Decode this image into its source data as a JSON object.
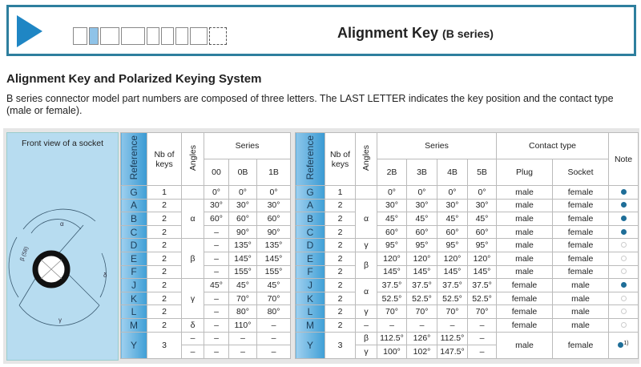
{
  "header": {
    "title": "Alignment Key",
    "subtitle": "(B series)",
    "accent": "#1f86c4"
  },
  "section": {
    "title": "Alignment Key and Polarized Keying System",
    "description": "B series connector model part numbers are composed of three letters. The LAST LETTER indicates the key position and the contact type (male or female)."
  },
  "diagram": {
    "title": "Front view of a socket",
    "labels": {
      "alpha": "α",
      "beta": "β (58)",
      "gamma": "γ",
      "delta": "δ"
    }
  },
  "left_table": {
    "headers": {
      "reference": "Reference",
      "keys": "Nb of keys",
      "angles": "Angles",
      "series": "Series",
      "cols": [
        "00",
        "0B",
        "1B"
      ]
    },
    "groups": [
      {
        "angle": "",
        "rows": [
          {
            "ref": "G",
            "keys": "1",
            "values": [
              "0°",
              "0°",
              "0°"
            ]
          }
        ]
      },
      {
        "angle": "α",
        "rows": [
          {
            "ref": "A",
            "keys": "2",
            "values": [
              "30°",
              "30°",
              "30°"
            ]
          },
          {
            "ref": "B",
            "keys": "2",
            "values": [
              "60°",
              "60°",
              "60°"
            ]
          },
          {
            "ref": "C",
            "keys": "2",
            "values": [
              "–",
              "90°",
              "90°"
            ]
          }
        ]
      },
      {
        "angle": "β",
        "rows": [
          {
            "ref": "D",
            "keys": "2",
            "values": [
              "–",
              "135°",
              "135°"
            ]
          },
          {
            "ref": "E",
            "keys": "2",
            "values": [
              "–",
              "145°",
              "145°"
            ]
          },
          {
            "ref": "F",
            "keys": "2",
            "values": [
              "–",
              "155°",
              "155°"
            ]
          }
        ]
      },
      {
        "angle": "γ",
        "rows": [
          {
            "ref": "J",
            "keys": "2",
            "values": [
              "45°",
              "45°",
              "45°"
            ]
          },
          {
            "ref": "K",
            "keys": "2",
            "values": [
              "–",
              "70°",
              "70°"
            ]
          },
          {
            "ref": "L",
            "keys": "2",
            "values": [
              "–",
              "80°",
              "80°"
            ]
          }
        ]
      },
      {
        "angle": "δ",
        "rows": [
          {
            "ref": "M",
            "keys": "2",
            "values": [
              "–",
              "110°",
              "–"
            ]
          }
        ]
      }
    ],
    "y_row": {
      "ref": "Y",
      "keys": "3",
      "sub": [
        {
          "angle": "–",
          "values": [
            "–",
            "–",
            "–"
          ]
        },
        {
          "angle": "–",
          "values": [
            "–",
            "–",
            "–"
          ]
        }
      ]
    }
  },
  "right_table": {
    "headers": {
      "reference": "Reference",
      "keys": "Nb of keys",
      "angles": "Angles",
      "series": "Series",
      "cols": [
        "2B",
        "3B",
        "4B",
        "5B"
      ],
      "contact": "Contact type",
      "plug": "Plug",
      "socket": "Socket",
      "note": "Note"
    },
    "groups": [
      {
        "angle": "",
        "rows": [
          {
            "ref": "G",
            "keys": "1",
            "values": [
              "0°",
              "0°",
              "0°",
              "0°"
            ],
            "plug": "male",
            "socket": "female",
            "note": true
          }
        ]
      },
      {
        "angle": "α",
        "rows": [
          {
            "ref": "A",
            "keys": "2",
            "values": [
              "30°",
              "30°",
              "30°",
              "30°"
            ],
            "plug": "male",
            "socket": "female",
            "note": true
          },
          {
            "ref": "B",
            "keys": "2",
            "values": [
              "45°",
              "45°",
              "45°",
              "45°"
            ],
            "plug": "male",
            "socket": "female",
            "note": true
          },
          {
            "ref": "C",
            "keys": "2",
            "values": [
              "60°",
              "60°",
              "60°",
              "60°"
            ],
            "plug": "male",
            "socket": "female",
            "note": true
          }
        ]
      },
      {
        "angle": "γ",
        "rows": [
          {
            "ref": "D",
            "keys": "2",
            "values": [
              "95°",
              "95°",
              "95°",
              "95°"
            ],
            "plug": "male",
            "socket": "female",
            "note": false
          }
        ]
      },
      {
        "angle": "β",
        "rows": [
          {
            "ref": "E",
            "keys": "2",
            "values": [
              "120°",
              "120°",
              "120°",
              "120°"
            ],
            "plug": "male",
            "socket": "female",
            "note": false
          },
          {
            "ref": "F",
            "keys": "2",
            "values": [
              "145°",
              "145°",
              "145°",
              "145°"
            ],
            "plug": "male",
            "socket": "female",
            "note": false
          }
        ]
      },
      {
        "angle": "α",
        "rows": [
          {
            "ref": "J",
            "keys": "2",
            "values": [
              "37.5°",
              "37.5°",
              "37.5°",
              "37.5°"
            ],
            "plug": "female",
            "socket": "male",
            "note": true
          },
          {
            "ref": "K",
            "keys": "2",
            "values": [
              "52.5°",
              "52.5°",
              "52.5°",
              "52.5°"
            ],
            "plug": "female",
            "socket": "male",
            "note": false
          }
        ]
      },
      {
        "angle": "γ",
        "rows": [
          {
            "ref": "L",
            "keys": "2",
            "values": [
              "70°",
              "70°",
              "70°",
              "70°"
            ],
            "plug": "female",
            "socket": "male",
            "note": false
          }
        ]
      },
      {
        "angle": "–",
        "rows": [
          {
            "ref": "M",
            "keys": "2",
            "values": [
              "–",
              "–",
              "–",
              "–"
            ],
            "plug": "female",
            "socket": "male",
            "note": false
          }
        ]
      }
    ],
    "y_row": {
      "ref": "Y",
      "keys": "3",
      "plug": "male",
      "socket": "female",
      "note": true,
      "note_mark": "1)",
      "sub": [
        {
          "angle": "β",
          "values": [
            "112.5°",
            "126°",
            "112.5°",
            "–"
          ]
        },
        {
          "angle": "γ",
          "values": [
            "100°",
            "102°",
            "147.5°",
            "–"
          ]
        }
      ]
    }
  }
}
